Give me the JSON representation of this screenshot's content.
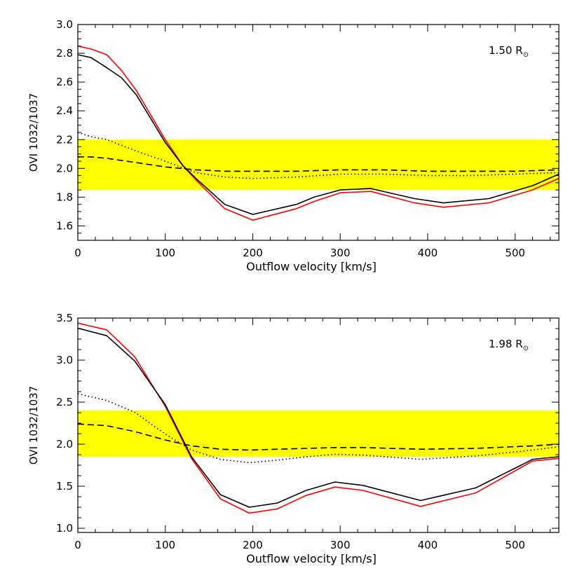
{
  "chart_data": [
    {
      "type": "line",
      "annotation": "1.50 R",
      "annotation_symbol": "⊙",
      "xlabel": "Outflow velocity [km/s]",
      "ylabel": "OVI 1032/1037",
      "xlim": [
        0,
        550
      ],
      "ylim": [
        1.5,
        3.0
      ],
      "xticks": [
        0,
        100,
        200,
        300,
        400,
        500
      ],
      "yticks": [
        1.6,
        1.8,
        2.0,
        2.2,
        2.4,
        2.6,
        2.8,
        3.0
      ],
      "ytick_labels": [
        "1.6",
        "1.8",
        "2.0",
        "2.2",
        "2.4",
        "2.6",
        "2.8",
        "3.0"
      ],
      "band": {
        "y0": 1.85,
        "y1": 2.2,
        "color": "#ffff00"
      },
      "series": [
        {
          "style": "solid",
          "color": "#ff0000",
          "x": [
            0,
            15,
            33,
            50,
            67,
            100,
            120,
            135,
            168,
            200,
            250,
            270,
            300,
            335,
            385,
            418,
            470,
            520,
            550
          ],
          "y": [
            2.85,
            2.83,
            2.79,
            2.68,
            2.54,
            2.2,
            2.02,
            1.92,
            1.72,
            1.64,
            1.72,
            1.77,
            1.83,
            1.84,
            1.76,
            1.73,
            1.76,
            1.85,
            1.93
          ]
        },
        {
          "style": "solid",
          "color": "#000000",
          "x": [
            0,
            15,
            33,
            50,
            67,
            100,
            120,
            135,
            168,
            200,
            250,
            270,
            300,
            335,
            385,
            418,
            470,
            520,
            550
          ],
          "y": [
            2.79,
            2.77,
            2.7,
            2.63,
            2.51,
            2.18,
            2.02,
            1.93,
            1.75,
            1.68,
            1.75,
            1.8,
            1.85,
            1.86,
            1.79,
            1.76,
            1.79,
            1.88,
            1.96
          ]
        },
        {
          "style": "dotted",
          "color": "#000000",
          "x": [
            0,
            15,
            33,
            67,
            100,
            135,
            168,
            200,
            250,
            300,
            350,
            400,
            450,
            500,
            550
          ],
          "y": [
            2.25,
            2.22,
            2.2,
            2.12,
            2.05,
            1.97,
            1.94,
            1.93,
            1.94,
            1.96,
            1.96,
            1.95,
            1.95,
            1.96,
            1.97
          ]
        },
        {
          "style": "dashed",
          "color": "#000000",
          "x": [
            0,
            15,
            33,
            67,
            100,
            135,
            168,
            200,
            250,
            300,
            350,
            400,
            450,
            500,
            550
          ],
          "y": [
            2.08,
            2.08,
            2.07,
            2.04,
            2.01,
            1.99,
            1.98,
            1.98,
            1.98,
            1.99,
            1.99,
            1.98,
            1.98,
            1.98,
            1.99
          ]
        }
      ]
    },
    {
      "type": "line",
      "annotation": "1.98 R",
      "annotation_symbol": "⊙",
      "xlabel": "Outflow velocity [km/s]",
      "ylabel": "OVI 1032/1037",
      "xlim": [
        0,
        550
      ],
      "ylim": [
        0.95,
        3.5
      ],
      "xticks": [
        0,
        100,
        200,
        300,
        400,
        500
      ],
      "yticks": [
        1.0,
        1.5,
        2.0,
        2.5,
        3.0,
        3.5
      ],
      "ytick_labels": [
        "1.0",
        "1.5",
        "2.0",
        "2.5",
        "3.0",
        "3.5"
      ],
      "band": {
        "y0": 1.85,
        "y1": 2.4,
        "color": "#ffff00"
      },
      "series": [
        {
          "style": "solid",
          "color": "#ff0000",
          "x": [
            0,
            33,
            65,
            100,
            130,
            163,
            196,
            228,
            261,
            294,
            326,
            392,
            455,
            520,
            550
          ],
          "y": [
            3.44,
            3.36,
            3.04,
            2.45,
            1.83,
            1.35,
            1.18,
            1.23,
            1.39,
            1.49,
            1.45,
            1.26,
            1.42,
            1.8,
            1.83
          ]
        },
        {
          "style": "solid",
          "color": "#000000",
          "x": [
            0,
            33,
            65,
            100,
            130,
            163,
            196,
            228,
            261,
            294,
            326,
            392,
            455,
            520,
            550
          ],
          "y": [
            3.38,
            3.29,
            2.99,
            2.47,
            1.85,
            1.4,
            1.25,
            1.3,
            1.45,
            1.55,
            1.51,
            1.33,
            1.48,
            1.82,
            1.85
          ]
        },
        {
          "style": "dotted",
          "color": "#000000",
          "x": [
            0,
            33,
            65,
            100,
            130,
            163,
            196,
            228,
            261,
            294,
            326,
            392,
            455,
            520,
            550
          ],
          "y": [
            2.6,
            2.52,
            2.38,
            2.12,
            1.93,
            1.82,
            1.78,
            1.81,
            1.85,
            1.88,
            1.87,
            1.82,
            1.86,
            1.93,
            1.97
          ]
        },
        {
          "style": "dashed",
          "color": "#000000",
          "x": [
            0,
            33,
            65,
            100,
            130,
            163,
            196,
            228,
            261,
            294,
            326,
            392,
            455,
            520,
            550
          ],
          "y": [
            2.24,
            2.22,
            2.15,
            2.05,
            1.98,
            1.94,
            1.93,
            1.94,
            1.95,
            1.96,
            1.96,
            1.94,
            1.95,
            1.98,
            2.0
          ]
        }
      ]
    }
  ]
}
